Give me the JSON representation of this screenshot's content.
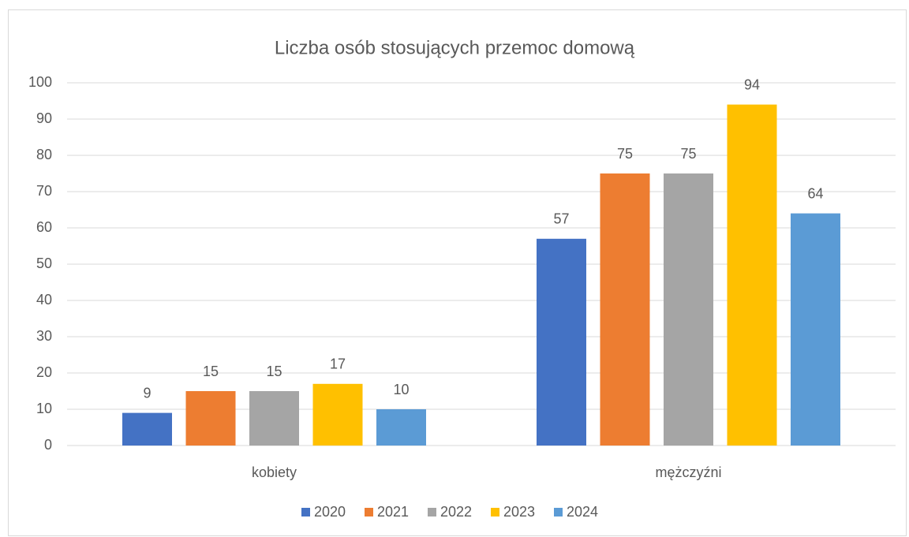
{
  "chart_data": {
    "type": "bar",
    "title": "Liczba osób stosujących przemoc domową",
    "categories": [
      "kobiety",
      "mężczyźni"
    ],
    "series": [
      {
        "name": "2020",
        "color": "#4472c4",
        "values": [
          9,
          57
        ]
      },
      {
        "name": "2021",
        "color": "#ed7d31",
        "values": [
          15,
          75
        ]
      },
      {
        "name": "2022",
        "color": "#a5a5a5",
        "values": [
          15,
          75
        ]
      },
      {
        "name": "2023",
        "color": "#ffc000",
        "values": [
          17,
          94
        ]
      },
      {
        "name": "2024",
        "color": "#5b9bd5",
        "values": [
          10,
          64
        ]
      }
    ],
    "ylim": [
      0,
      100
    ],
    "yticks": [
      0,
      10,
      20,
      30,
      40,
      50,
      60,
      70,
      80,
      90,
      100
    ],
    "grid": true,
    "legend": "bottom"
  }
}
